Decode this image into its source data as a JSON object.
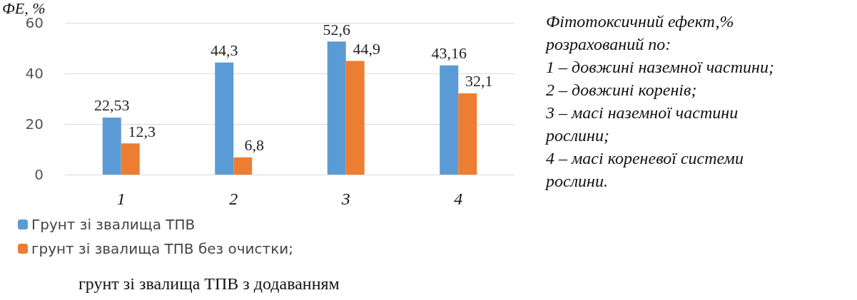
{
  "chart_data": {
    "type": "bar",
    "ylabel": "ФЕ, %",
    "categories": [
      "1",
      "2",
      "3",
      "4"
    ],
    "series": [
      {
        "name": "Грунт зі звалища ТПВ",
        "color": "#5b9bd5",
        "values": [
          22.53,
          44.3,
          52.6,
          43.16
        ],
        "value_labels": [
          "22,53",
          "44,3",
          "52,6",
          "43,16"
        ]
      },
      {
        "name": "грунт зі звалища ТПВ без очистки;",
        "color": "#ed7d31",
        "values": [
          12.3,
          6.8,
          44.9,
          32.1
        ],
        "value_labels": [
          "12,3",
          "6,8",
          "44,9",
          "32,1"
        ]
      }
    ],
    "ylim": [
      0,
      60
    ],
    "yticks": [
      0,
      20,
      40,
      60
    ],
    "grid": "y",
    "legend": "bottom left",
    "annotations": [
      "Фітотоксичний ефект,%\nрозрахований по:\n1 – довжині наземної частини;\n2 – довжині коренів;\n3 – масі наземної частини\nрослини;\n4 – масі кореневої системи\nрослини.",
      "грунт зі звалища ТПВ з додаванням"
    ]
  }
}
